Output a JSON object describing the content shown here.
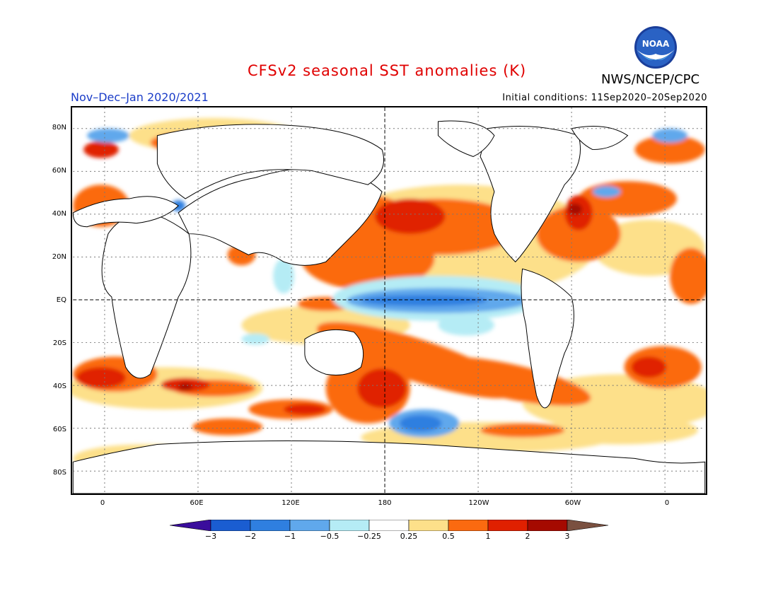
{
  "header": {
    "title": "CFSv2 seasonal SST anomalies (K)",
    "period": "Nov–Dec–Jan 2020/2021",
    "initial_conditions": "Initial conditions: 11Sep2020–20Sep2020",
    "agency": "NWS/NCEP/CPC",
    "logo_text": "NOAA"
  },
  "axes": {
    "y_labels": [
      "80N",
      "60N",
      "40N",
      "20N",
      "EQ",
      "20S",
      "40S",
      "60S",
      "80S"
    ],
    "x_labels": [
      "0",
      "60E",
      "120E",
      "180",
      "120W",
      "60W",
      "0"
    ]
  },
  "colorbar": {
    "labels": [
      "−3",
      "−2",
      "−1",
      "−0.5",
      "−0.25",
      "0.25",
      "0.5",
      "1",
      "2",
      "3"
    ],
    "colors": [
      "#3a0d9c",
      "#1a5dd1",
      "#2f7fe0",
      "#60a8ec",
      "#b5ecf5",
      "#ffffff",
      "#fde08a",
      "#fb6a10",
      "#e02000",
      "#a50a00",
      "#7a5040"
    ]
  }
}
